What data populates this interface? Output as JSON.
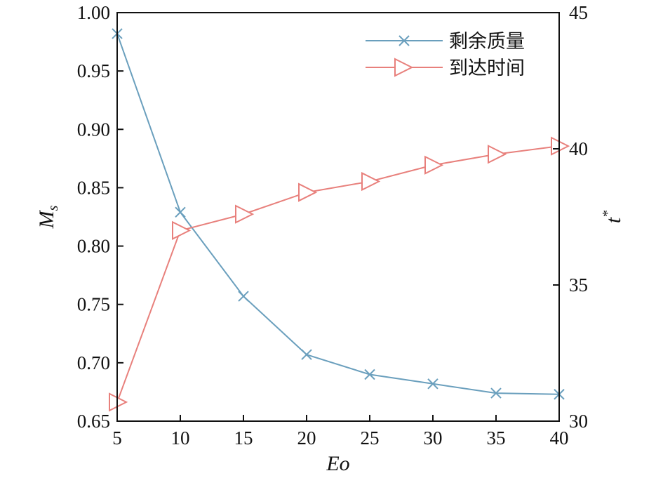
{
  "chart_data": {
    "type": "line",
    "title": "",
    "x": [
      5,
      10,
      15,
      20,
      25,
      30,
      35,
      40
    ],
    "xlabel": "Eo",
    "xlim": [
      5,
      40
    ],
    "xticks": [
      "5",
      "10",
      "15",
      "20",
      "25",
      "30",
      "35",
      "40"
    ],
    "ylabel_left": {
      "main": "M",
      "sub": "s"
    },
    "ylim_left": [
      0.65,
      1.0
    ],
    "yticks_left": [
      "0.65",
      "0.70",
      "0.75",
      "0.80",
      "0.85",
      "0.90",
      "0.95",
      "1.00"
    ],
    "ylabel_right": {
      "main": "t",
      "sup": "*"
    },
    "ylim_right": [
      30,
      45
    ],
    "yticks_right": [
      "30",
      "35",
      "40",
      "45"
    ],
    "grid": false,
    "legend_position": "top-right",
    "series": [
      {
        "name": "剩余质量",
        "axis": "left",
        "marker": "x",
        "color": "#6a9fbd",
        "values": [
          0.982,
          0.829,
          0.757,
          0.707,
          0.69,
          0.682,
          0.674,
          0.673
        ]
      },
      {
        "name": "到达时间",
        "axis": "right",
        "marker": "triangle-right",
        "color": "#e8807c",
        "values": [
          30.7,
          37.0,
          37.6,
          38.4,
          38.8,
          39.4,
          39.8,
          40.1
        ]
      }
    ]
  }
}
